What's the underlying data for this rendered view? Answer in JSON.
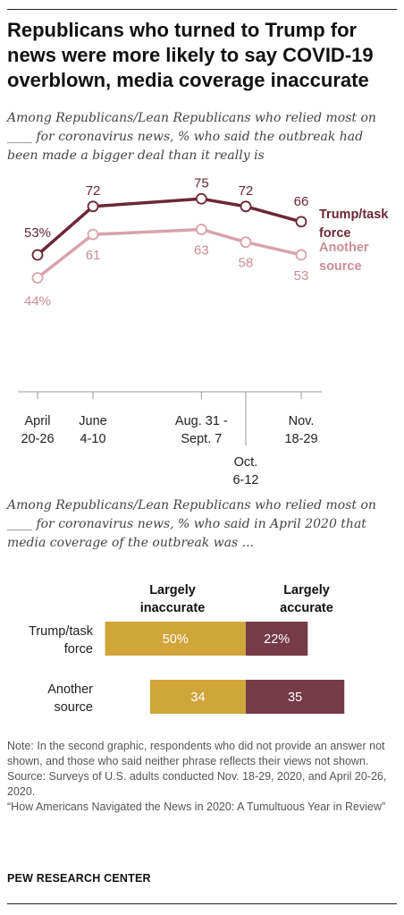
{
  "title": "Republicans who turned to Trump for news were more likely to say COVID-19 overblown, media coverage inaccurate",
  "colors": {
    "trump": "#6b2737",
    "another": "#d8a3ac",
    "another_label": "#c98d99",
    "inaccurate": "#d0a63a",
    "accurate": "#763a49",
    "axis": "#999999"
  },
  "chart_data": [
    {
      "type": "line",
      "subtitle": "Among Republicans/Lean Republicans who relied most on ____ for coronavirus news, % who said the outbreak had been made a bigger deal than it really is",
      "x_tick_labels": [
        [
          "April",
          "20-26"
        ],
        [
          "June",
          "4-10"
        ],
        [
          "Aug. 31 -",
          "Sept. 7"
        ],
        [
          "Oct.",
          "6-12"
        ],
        [
          "Nov.",
          "18-29"
        ]
      ],
      "x_dates": [
        "2020-04-23",
        "2020-06-07",
        "2020-09-03",
        "2020-10-09",
        "2020-11-23"
      ],
      "ylim": [
        0,
        100
      ],
      "series": [
        {
          "name": "Trump/task force",
          "name_lines": [
            "Trump/task",
            "force"
          ],
          "values": [
            53,
            72,
            75,
            72,
            66
          ],
          "labels": [
            "53%",
            "72",
            "75",
            "72",
            "66"
          ]
        },
        {
          "name": "Another source",
          "name_lines": [
            "Another",
            "source"
          ],
          "values": [
            44,
            61,
            63,
            58,
            53
          ],
          "labels": [
            "44%",
            "61",
            "63",
            "58",
            "53"
          ]
        }
      ]
    },
    {
      "type": "bar",
      "subtitle": "Among Republicans/Lean Republicans who relied most on ____ for coronavirus news, % who said in April 2020 that media coverage of the outbreak was ...",
      "stacked": "diverging",
      "categories": [
        {
          "label": "Trump/task force",
          "lines": [
            "Trump/task",
            "force"
          ]
        },
        {
          "label": "Another source",
          "lines": [
            "Another",
            "source"
          ]
        }
      ],
      "series": [
        {
          "name": "Largely inaccurate",
          "name_lines": [
            "Largely",
            "inaccurate"
          ],
          "values": [
            50,
            34
          ],
          "labels": [
            "50%",
            "34"
          ]
        },
        {
          "name": "Largely accurate",
          "name_lines": [
            "Largely",
            "accurate"
          ],
          "values": [
            22,
            35
          ],
          "labels": [
            "22%",
            "35"
          ]
        }
      ]
    }
  ],
  "notes": [
    "Note: In the second graphic, respondents who did not provide an answer not shown, and those who said neither phrase reflects their views not shown.",
    "Source: Surveys of U.S. adults conducted Nov. 18-29, 2020, and April 20-26, 2020.",
    "“How Americans Navigated the News in 2020: A Tumultuous Year in Review”"
  ],
  "brand": "PEW RESEARCH CENTER"
}
